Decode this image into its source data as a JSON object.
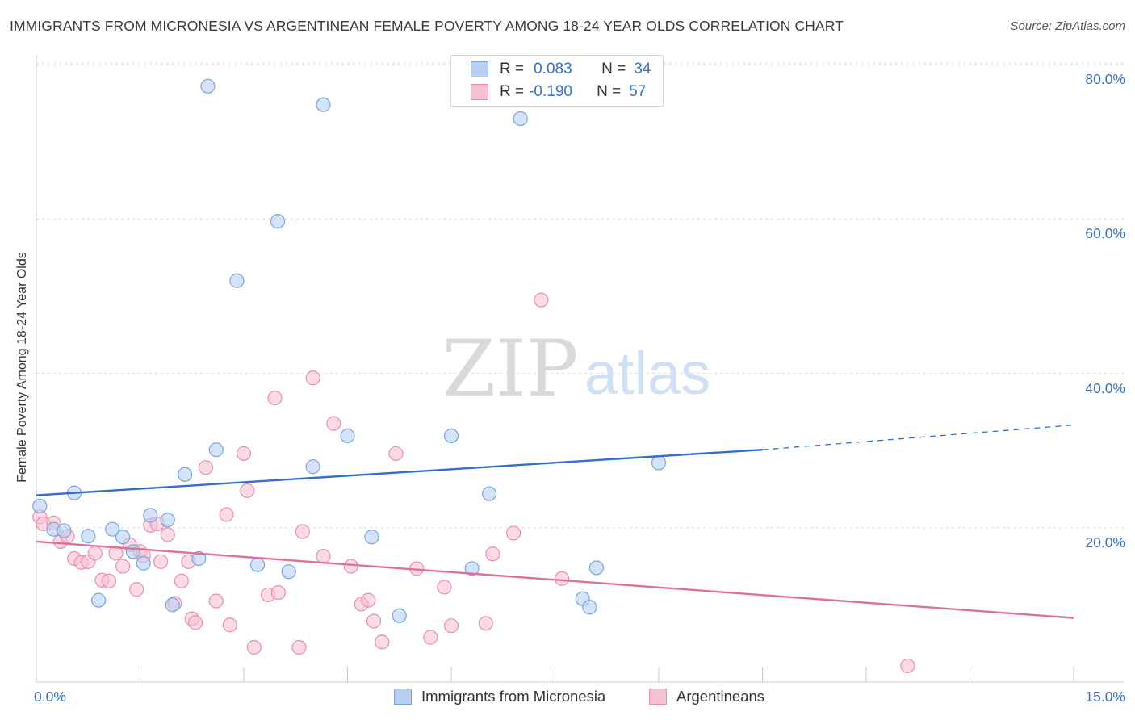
{
  "header": {
    "title": "IMMIGRANTS FROM MICRONESIA VS ARGENTINEAN FEMALE POVERTY AMONG 18-24 YEAR OLDS CORRELATION CHART",
    "source": "Source: ZipAtlas.com"
  },
  "watermark": {
    "zip": "ZIP",
    "atlas": "atlas"
  },
  "legend": {
    "series1": {
      "r_label": "R =",
      "r_value": "0.083",
      "n_label": "N =",
      "n_value": "34"
    },
    "series2": {
      "r_label": "R =",
      "r_value": "-0.190",
      "n_label": "N =",
      "n_value": "57"
    }
  },
  "colors": {
    "blue_fill": "#b8d0f2",
    "blue_stroke": "#7aa3dc",
    "blue_line": "#2f6fcf",
    "pink_fill": "#f7c2d3",
    "pink_stroke": "#e98fad",
    "pink_line": "#e0709a",
    "tick_text": "#3a6fc4",
    "grid": "#dcdcdc"
  },
  "chart_data": {
    "type": "scatter",
    "title": "IMMIGRANTS FROM MICRONESIA VS ARGENTINEAN FEMALE POVERTY AMONG 18-24 YEAR OLDS CORRELATION CHART",
    "xlabel": "",
    "ylabel": "Female Poverty Among 18-24 Year Olds",
    "xlim": [
      0,
      15
    ],
    "ylim": [
      0,
      80
    ],
    "x_tick_labels": [
      {
        "value": 0,
        "label": "0.0%"
      },
      {
        "value": 15,
        "label": "15.0%"
      }
    ],
    "y_tick_labels": [
      {
        "value": 20,
        "label": "20.0%"
      },
      {
        "value": 40,
        "label": "40.0%"
      },
      {
        "value": 60,
        "label": "60.0%"
      },
      {
        "value": 80,
        "label": "80.0%"
      }
    ],
    "grid": true,
    "legend_position": "bottom",
    "series": [
      {
        "name": "Immigrants from Micronesia",
        "r": 0.083,
        "n": 34,
        "trend": {
          "x0": 0,
          "y0": 24.2,
          "x1": 10.5,
          "y1": 30.1,
          "dashed_to_x": 15,
          "dashed_to_y": 33.3
        },
        "points": [
          [
            0.05,
            22.8
          ],
          [
            0.25,
            19.8
          ],
          [
            0.4,
            19.6
          ],
          [
            0.55,
            24.5
          ],
          [
            0.75,
            18.9
          ],
          [
            0.9,
            10.6
          ],
          [
            1.1,
            19.8
          ],
          [
            1.25,
            18.8
          ],
          [
            1.4,
            16.9
          ],
          [
            1.55,
            15.4
          ],
          [
            1.65,
            21.6
          ],
          [
            1.9,
            21.0
          ],
          [
            1.97,
            10.0
          ],
          [
            2.15,
            26.9
          ],
          [
            2.35,
            16.0
          ],
          [
            2.48,
            77.2
          ],
          [
            2.6,
            30.1
          ],
          [
            2.9,
            52.0
          ],
          [
            3.2,
            15.2
          ],
          [
            3.49,
            59.7
          ],
          [
            3.65,
            14.3
          ],
          [
            4.0,
            27.9
          ],
          [
            4.15,
            74.8
          ],
          [
            4.5,
            31.9
          ],
          [
            4.85,
            18.8
          ],
          [
            5.25,
            8.6
          ],
          [
            6.0,
            31.9
          ],
          [
            6.3,
            14.7
          ],
          [
            6.55,
            24.4
          ],
          [
            7.0,
            73.0
          ],
          [
            7.9,
            10.8
          ],
          [
            8.0,
            9.7
          ],
          [
            8.1,
            14.8
          ],
          [
            9.0,
            28.4
          ]
        ]
      },
      {
        "name": "Argentineans",
        "r": -0.19,
        "n": 57,
        "trend": {
          "x0": 0,
          "y0": 18.2,
          "x1": 15,
          "y1": 8.3
        },
        "points": [
          [
            0.05,
            21.4
          ],
          [
            0.1,
            20.5
          ],
          [
            0.25,
            20.6
          ],
          [
            0.35,
            18.2
          ],
          [
            0.45,
            18.9
          ],
          [
            0.55,
            16.0
          ],
          [
            0.65,
            15.5
          ],
          [
            0.75,
            15.6
          ],
          [
            0.85,
            16.7
          ],
          [
            0.95,
            13.2
          ],
          [
            1.05,
            13.1
          ],
          [
            1.15,
            16.7
          ],
          [
            1.25,
            15.0
          ],
          [
            1.35,
            17.8
          ],
          [
            1.45,
            12.0
          ],
          [
            1.5,
            16.9
          ],
          [
            1.55,
            16.4
          ],
          [
            1.65,
            20.3
          ],
          [
            1.75,
            20.5
          ],
          [
            1.8,
            15.6
          ],
          [
            1.9,
            19.1
          ],
          [
            2.0,
            10.2
          ],
          [
            2.1,
            13.1
          ],
          [
            2.2,
            15.6
          ],
          [
            2.25,
            8.2
          ],
          [
            2.3,
            7.7
          ],
          [
            2.45,
            27.8
          ],
          [
            2.6,
            10.5
          ],
          [
            2.75,
            21.7
          ],
          [
            2.8,
            7.4
          ],
          [
            3.0,
            29.6
          ],
          [
            3.05,
            24.8
          ],
          [
            3.15,
            4.5
          ],
          [
            3.35,
            11.3
          ],
          [
            3.45,
            36.8
          ],
          [
            3.5,
            11.6
          ],
          [
            3.8,
            4.5
          ],
          [
            3.85,
            19.5
          ],
          [
            4.0,
            39.4
          ],
          [
            4.15,
            16.3
          ],
          [
            4.3,
            33.5
          ],
          [
            4.55,
            15.0
          ],
          [
            4.7,
            10.1
          ],
          [
            4.8,
            10.6
          ],
          [
            4.88,
            7.9
          ],
          [
            5.0,
            5.2
          ],
          [
            5.2,
            29.6
          ],
          [
            5.5,
            14.7
          ],
          [
            5.7,
            5.8
          ],
          [
            5.9,
            12.3
          ],
          [
            6.0,
            7.3
          ],
          [
            6.5,
            7.6
          ],
          [
            6.6,
            16.6
          ],
          [
            6.9,
            19.3
          ],
          [
            7.3,
            49.5
          ],
          [
            7.6,
            13.4
          ],
          [
            12.6,
            2.1
          ]
        ]
      }
    ]
  },
  "bottom_legend": {
    "series1": "Immigrants from Micronesia",
    "series2": "Argentineans"
  }
}
